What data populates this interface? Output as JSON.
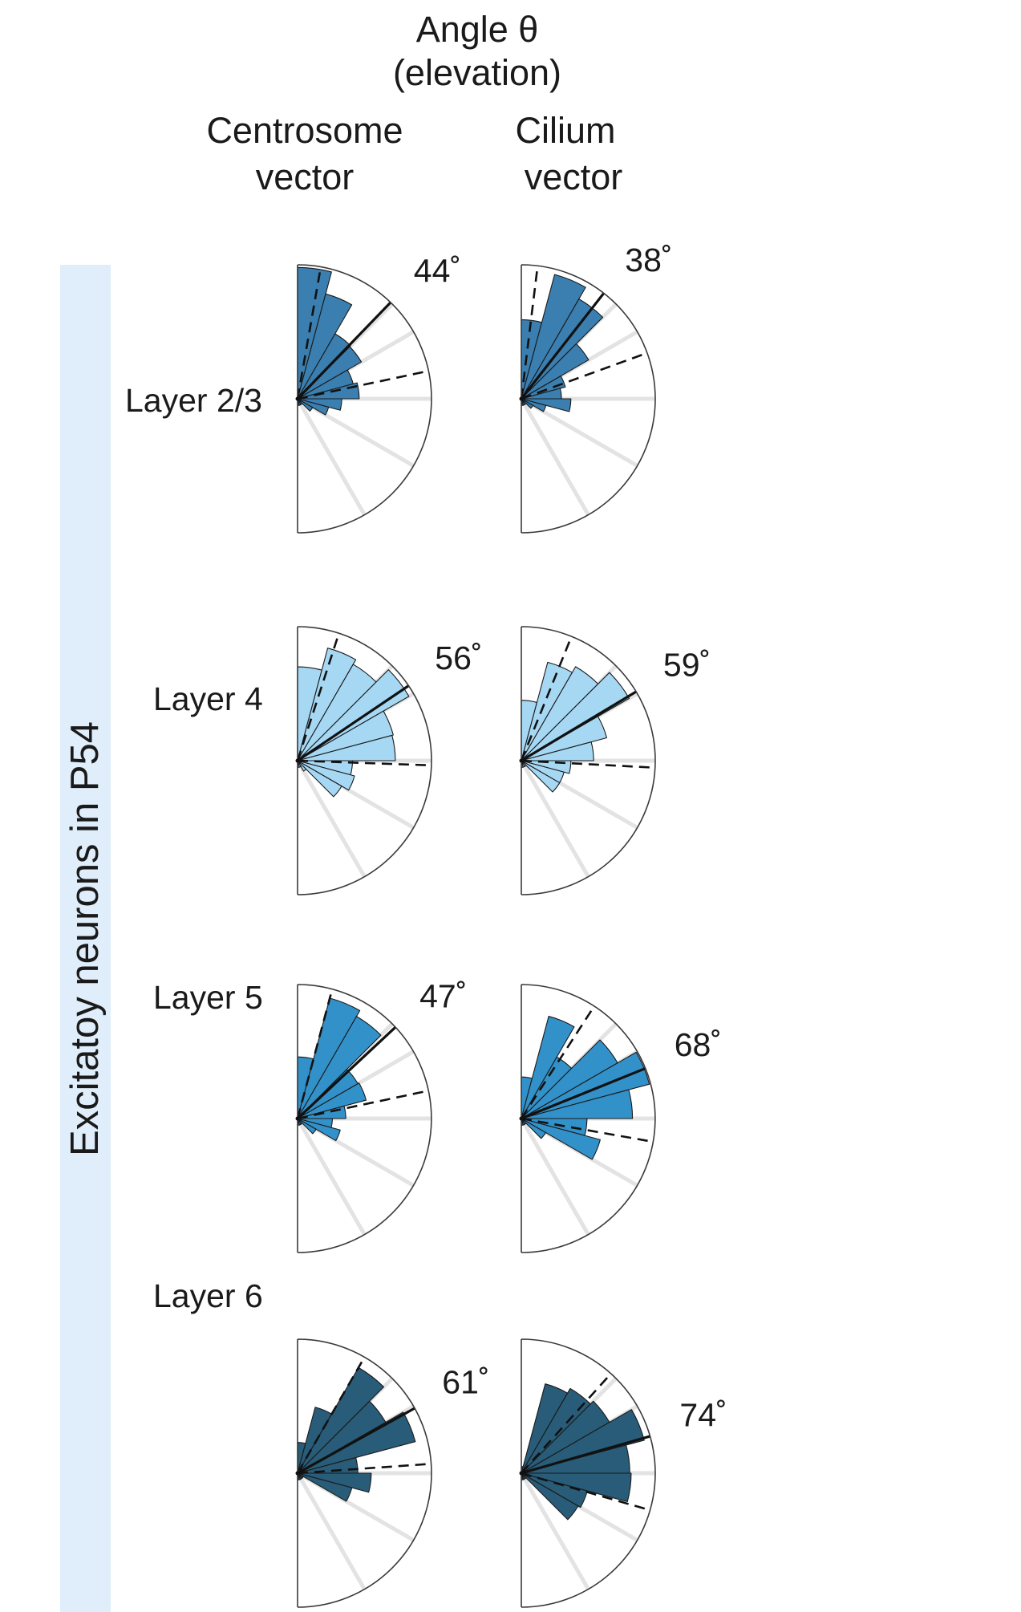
{
  "header": {
    "line1": "Angle θ",
    "line2": "(elevation)",
    "col_left_1": "Centrosome",
    "col_left_2": "vector",
    "col_right_1": "Cilium",
    "col_right_2": "vector"
  },
  "side_label": "Excitatoy neurons in P54",
  "rows": [
    {
      "label": "Layer 2/3"
    },
    {
      "label": "Layer 4"
    },
    {
      "label": "Layer 5"
    },
    {
      "label": "Layer 6"
    }
  ],
  "colors": {
    "layer_2_3": "#3a7fb0",
    "layer_4": "#a6d8f4",
    "layer_5": "#3391c9",
    "layer_6": "#285c78",
    "grid": "#e3e3e3",
    "band": "#dfeefa"
  },
  "chart_data": {
    "type": "polar-histogram (semicircular rose)",
    "angular_range_deg": [
      0,
      180
    ],
    "bin_width_deg": 15,
    "bin_centers_deg": [
      7.5,
      22.5,
      37.5,
      52.5,
      67.5,
      82.5,
      97.5,
      112.5,
      127.5,
      142.5,
      157.5,
      172.5
    ],
    "radial_unit": "fraction of outer radius",
    "panels": [
      {
        "row": "Layer 2/3",
        "column": "Centrosome vector",
        "mean_angle_deg": 44,
        "mean_label": "44˚",
        "dashed_bounds_deg": [
          10,
          78
        ],
        "values": [
          0.98,
          0.81,
          0.56,
          0.55,
          0.43,
          0.46,
          0.33,
          0.24,
          0.13,
          0.05,
          0.05,
          0.05
        ]
      },
      {
        "row": "Layer 2/3",
        "column": "Cilium vector",
        "mean_angle_deg": 38,
        "mean_label": "38˚",
        "dashed_bounds_deg": [
          7,
          70
        ],
        "values": [
          0.59,
          0.96,
          0.86,
          0.58,
          0.34,
          0.3,
          0.37,
          0.19,
          0.1,
          0.05,
          0.05,
          0.05
        ]
      },
      {
        "row": "Layer 4",
        "column": "Centrosome vector",
        "mean_angle_deg": 56,
        "mean_label": "56˚",
        "dashed_bounds_deg": [
          18,
          92
        ],
        "values": [
          0.7,
          0.87,
          0.83,
          0.96,
          0.74,
          0.73,
          0.41,
          0.44,
          0.38,
          0.09,
          0.05,
          0.05
        ]
      },
      {
        "row": "Layer 4",
        "column": "Cilium vector",
        "mean_angle_deg": 59,
        "mean_label": "59˚",
        "dashed_bounds_deg": [
          22,
          93
        ],
        "values": [
          0.45,
          0.76,
          0.81,
          0.93,
          0.66,
          0.54,
          0.37,
          0.33,
          0.33,
          0.05,
          0.05,
          0.05
        ]
      },
      {
        "row": "Layer 5",
        "column": "Centrosome vector",
        "mean_angle_deg": 47,
        "mean_label": "47˚",
        "dashed_bounds_deg": [
          15,
          78
        ],
        "values": [
          0.46,
          0.93,
          0.88,
          0.52,
          0.53,
          0.36,
          0.26,
          0.33,
          0.16,
          0.05,
          0.05,
          0.05
        ]
      },
      {
        "row": "Layer 5",
        "column": "Cilium vector",
        "mean_angle_deg": 68,
        "mean_label": "68˚",
        "dashed_bounds_deg": [
          33,
          100
        ],
        "values": [
          0.31,
          0.79,
          0.53,
          0.83,
          0.99,
          0.83,
          0.49,
          0.61,
          0.21,
          0.05,
          0.05,
          0.05
        ]
      },
      {
        "row": "Layer 6",
        "column": "Centrosome vector",
        "mean_angle_deg": 61,
        "mean_label": "61˚",
        "dashed_bounds_deg": [
          30,
          86
        ],
        "values": [
          0.23,
          0.51,
          0.91,
          0.76,
          0.91,
          0.45,
          0.55,
          0.42,
          0.05,
          0.05,
          0.05,
          0.05
        ]
      },
      {
        "row": "Layer 6",
        "column": "Cilium vector",
        "mean_angle_deg": 74,
        "mean_label": "74˚",
        "dashed_bounds_deg": [
          42,
          106
        ],
        "values": [
          0.05,
          0.69,
          0.73,
          0.76,
          0.95,
          0.81,
          0.82,
          0.51,
          0.49,
          0.05,
          0.05,
          0.05
        ]
      }
    ]
  }
}
